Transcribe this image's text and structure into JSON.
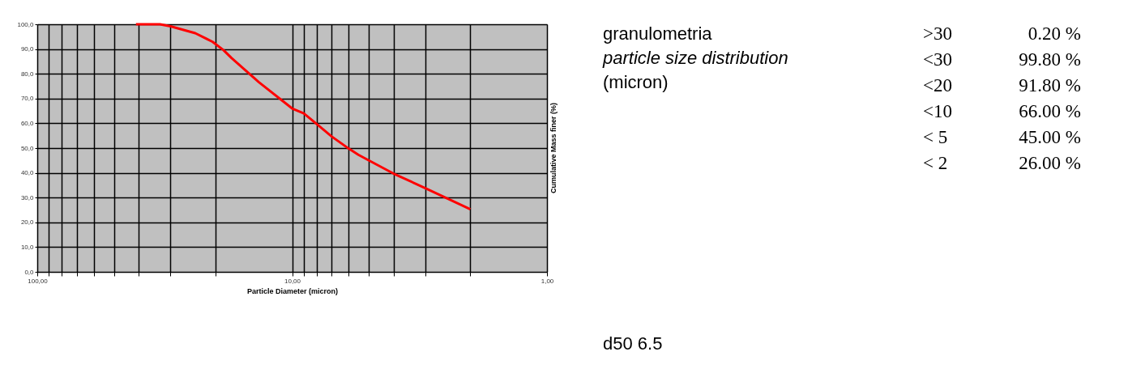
{
  "chart_data": {
    "type": "line",
    "title": "granulometria",
    "subtitle": "particle size distribution",
    "xlabel": "Particle Diameter (micron)",
    "ylabel": "Cumulative Mass finer (%)",
    "annotations": [
      "(micron)",
      ">30",
      "0.20 %",
      "<30",
      "99.80 %",
      "<20",
      "91.80 %",
      "<10",
      "66.00 %",
      "< 5",
      "45.00 %",
      "< 2",
      "26.00 %",
      "d50   6.5"
    ],
    "x": [
      41,
      33,
      30,
      24,
      20.5,
      18.6,
      17.3,
      13.5,
      10,
      9,
      8,
      7,
      6,
      5.5,
      5,
      4,
      3,
      2
    ],
    "series": [
      {
        "color": "#ff0000",
        "values": [
          100,
          100,
          99.2,
          96.4,
          92.9,
          89.6,
          86.4,
          76.6,
          66,
          64,
          59.7,
          54.7,
          49.8,
          47.3,
          45,
          39.7,
          33.8,
          25.3
        ]
      }
    ],
    "log": "x",
    "xlim": [
      100,
      1
    ],
    "xticks": [
      {
        "value": 100,
        "label": "100,00"
      },
      {
        "value": 90,
        "label": null
      },
      {
        "value": 80,
        "label": null
      },
      {
        "value": 70,
        "label": null
      },
      {
        "value": 60,
        "label": null
      },
      {
        "value": 50,
        "label": null
      },
      {
        "value": 40,
        "label": null
      },
      {
        "value": 30,
        "label": null
      },
      {
        "value": 20,
        "label": null
      },
      {
        "value": 10,
        "label": "10,00"
      },
      {
        "value": 9,
        "label": null
      },
      {
        "value": 8,
        "label": null
      },
      {
        "value": 7,
        "label": null
      },
      {
        "value": 6,
        "label": null
      },
      {
        "value": 5,
        "label": null
      },
      {
        "value": 4,
        "label": null
      },
      {
        "value": 3,
        "label": null
      },
      {
        "value": 2,
        "label": null
      },
      {
        "value": 1,
        "label": "1,00"
      }
    ],
    "ylim": [
      0,
      100
    ],
    "yticks": [
      {
        "value": 0,
        "label": "0,0"
      },
      {
        "value": 10,
        "label": "10,0"
      },
      {
        "value": 20,
        "label": "20,0"
      },
      {
        "value": 30,
        "label": "30,0"
      },
      {
        "value": 40,
        "label": "40,0"
      },
      {
        "value": 50,
        "label": "50,0"
      },
      {
        "value": 60,
        "label": "60,0"
      },
      {
        "value": 70,
        "label": "70,0"
      },
      {
        "value": 80,
        "label": "80,0"
      },
      {
        "value": 90,
        "label": "90,0"
      },
      {
        "value": 100,
        "label": "100,0"
      }
    ],
    "grid": true,
    "marker": "none",
    "line_style": "solid"
  }
}
